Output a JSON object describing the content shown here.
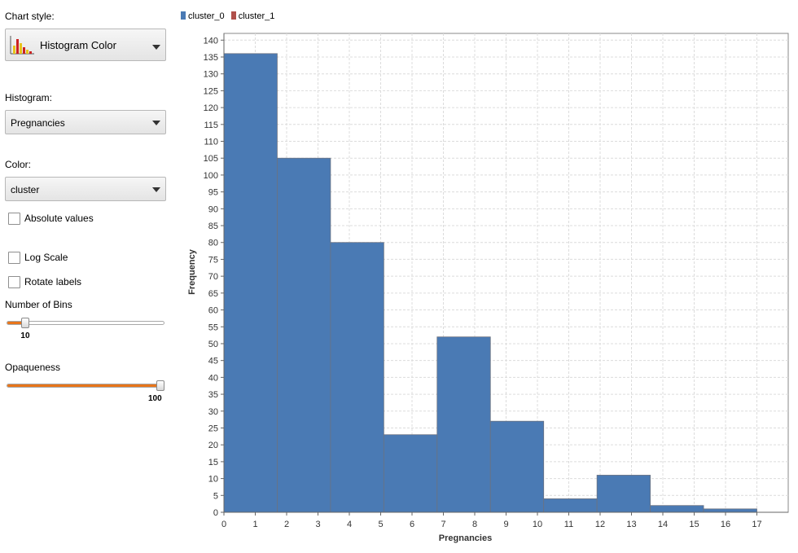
{
  "controls": {
    "chart_style_label": "Chart style:",
    "chart_style_value": "Histogram Color",
    "chart_style_icon": "histogram-color-icon",
    "histogram_label": "Histogram:",
    "histogram_value": "Pregnancies",
    "color_label": "Color:",
    "color_value": "cluster",
    "absolute_values": {
      "label": "Absolute values",
      "checked": false
    },
    "log_scale": {
      "label": "Log Scale",
      "checked": false
    },
    "rotate_labels": {
      "label": "Rotate labels",
      "checked": false
    },
    "bins_label": "Number of Bins",
    "bins_value": "10",
    "bins_fraction": 0.1,
    "opaqueness_label": "Opaqueness",
    "opaqueness_value": "100",
    "opaqueness_fraction": 1.0,
    "accent_color": "#e8751a"
  },
  "chart_data": {
    "type": "bar",
    "legend": [
      {
        "name": "cluster_0",
        "color": "#4a7ab4"
      },
      {
        "name": "cluster_1",
        "color": "#b0504a"
      }
    ],
    "legend_position": "top-left",
    "xlabel": "Pregnancies",
    "ylabel": "Frequency",
    "xlim": [
      0,
      18
    ],
    "ylim": [
      0,
      142
    ],
    "grid": true,
    "xticks": [
      0,
      1,
      2,
      3,
      4,
      5,
      6,
      7,
      8,
      9,
      10,
      11,
      12,
      13,
      14,
      15,
      16,
      17
    ],
    "yticks": [
      0,
      5,
      10,
      15,
      20,
      25,
      30,
      35,
      40,
      45,
      50,
      55,
      60,
      65,
      70,
      75,
      80,
      85,
      90,
      95,
      100,
      105,
      110,
      115,
      120,
      125,
      130,
      135,
      140
    ],
    "bin_edges": [
      0,
      1.7,
      3.4,
      5.1,
      6.8,
      8.5,
      10.2,
      11.9,
      13.6,
      15.3,
      17.0
    ],
    "series": [
      {
        "name": "cluster_0",
        "color": "#4a7ab4",
        "values": [
          136,
          105,
          80,
          23,
          52,
          27,
          4,
          11,
          2,
          1
        ]
      }
    ]
  }
}
